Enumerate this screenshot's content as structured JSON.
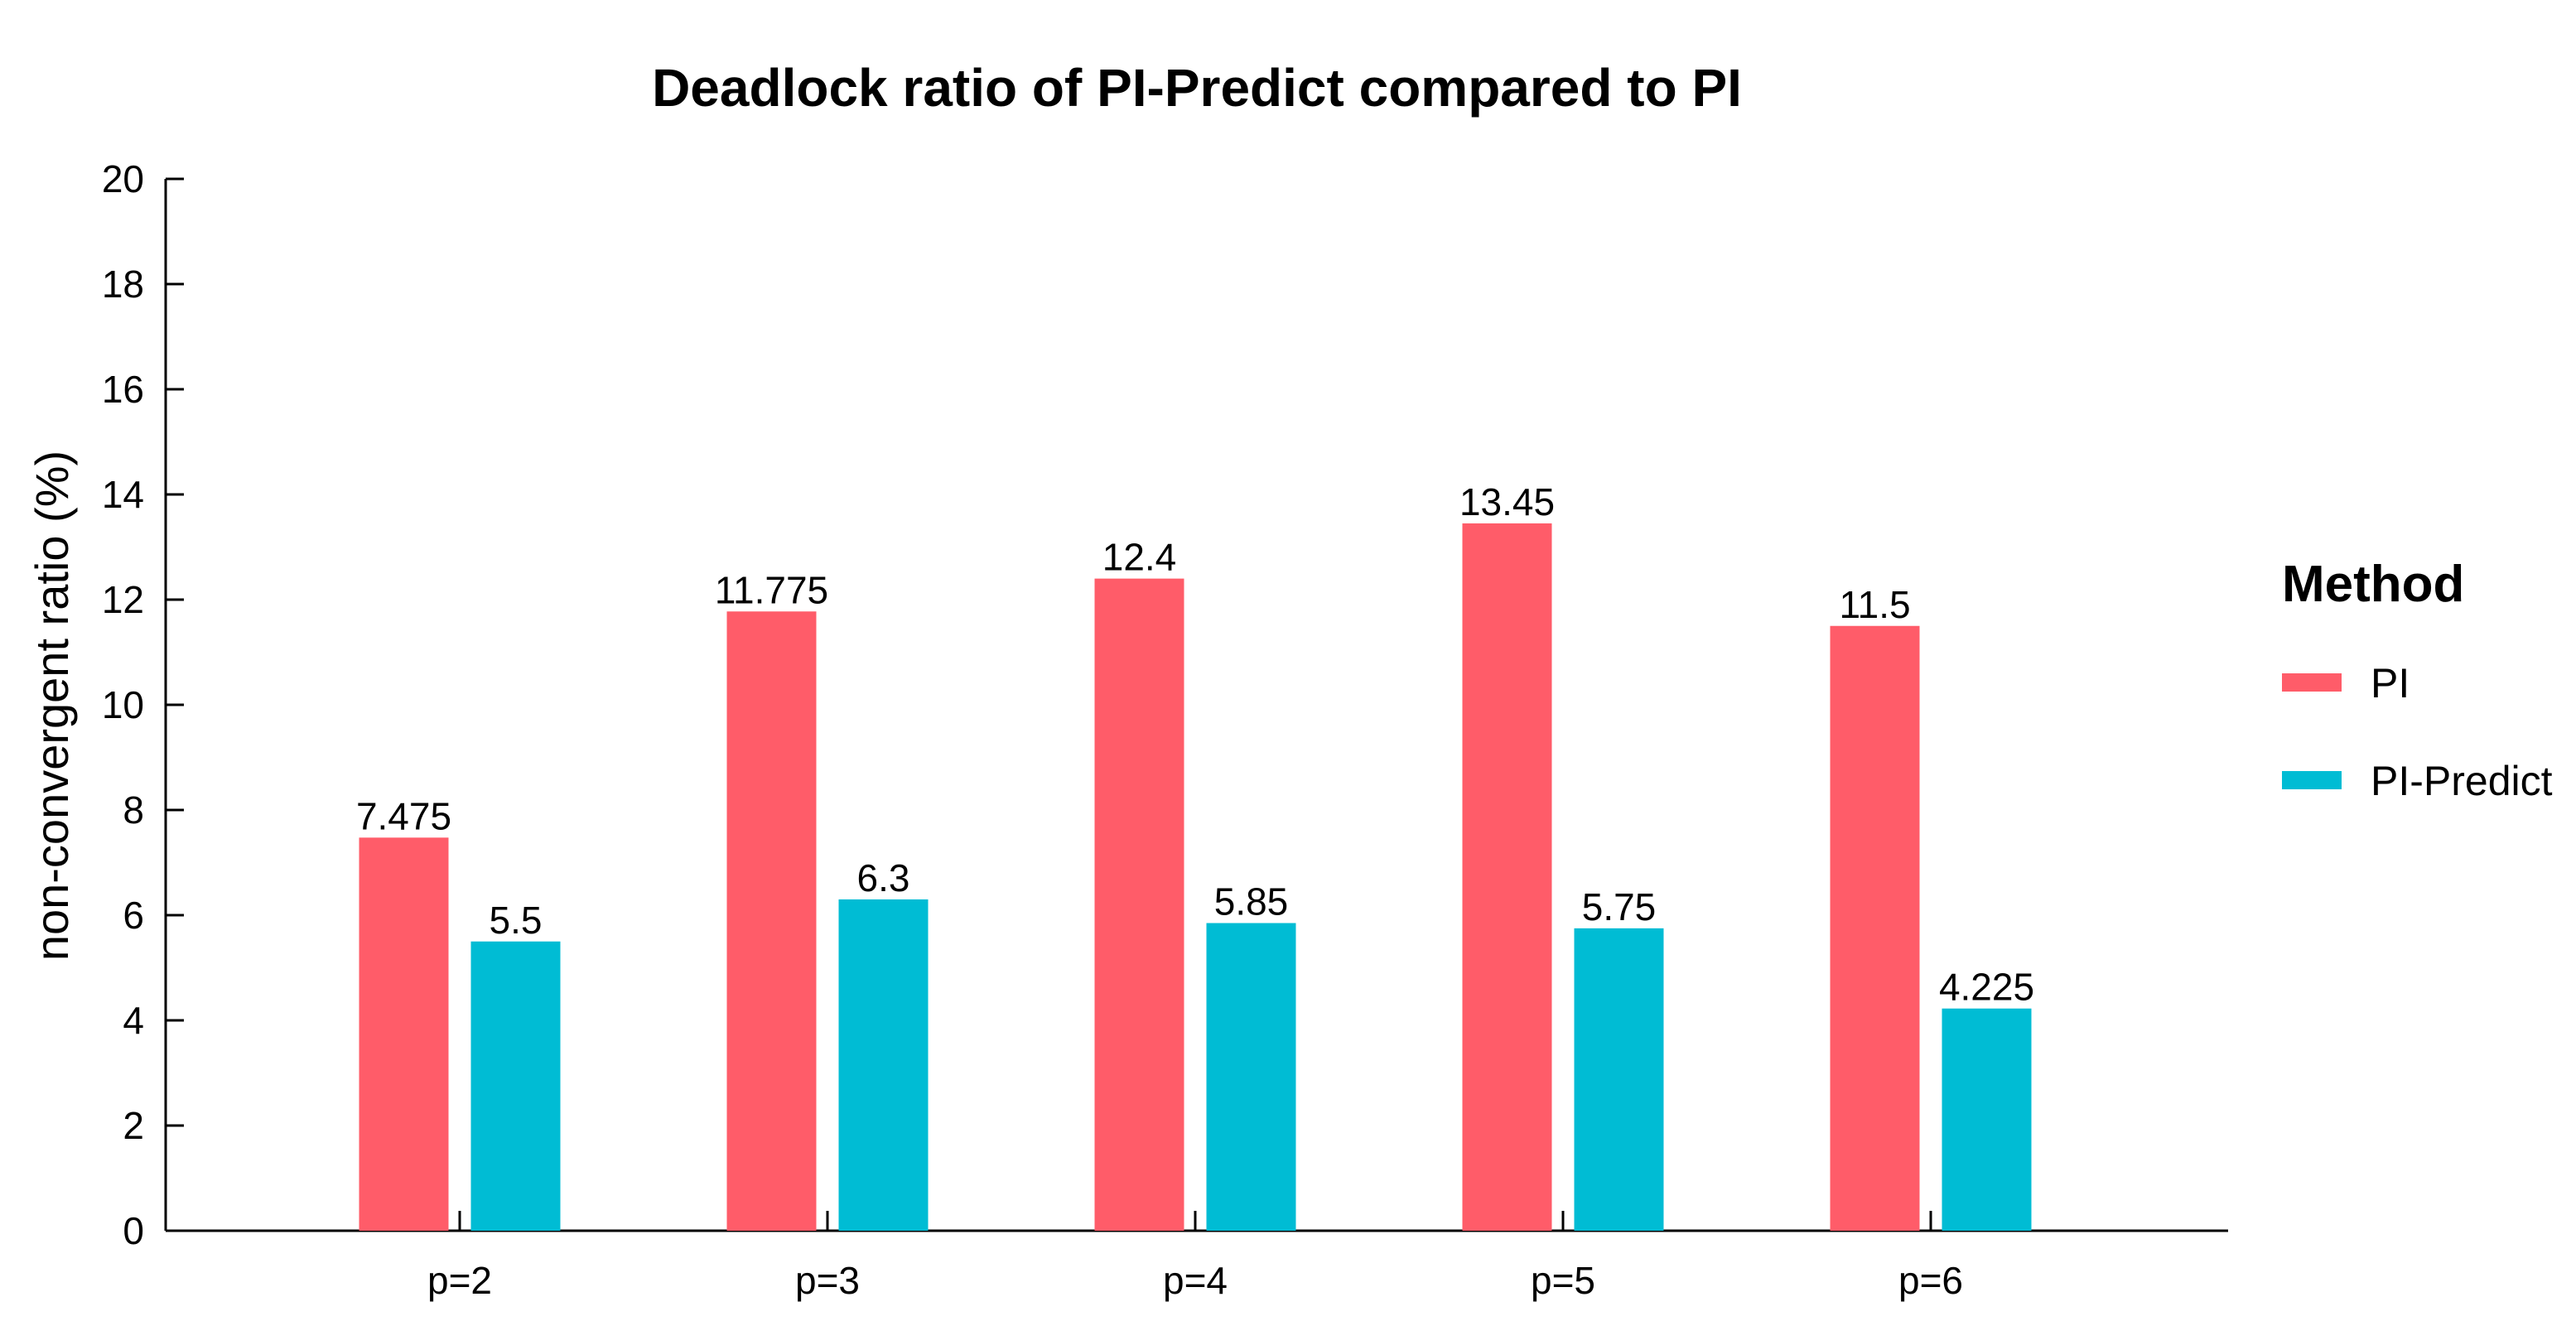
{
  "chart_data": {
    "type": "bar",
    "title": "Deadlock ratio of PI-Predict compared to PI",
    "xlabel": "",
    "ylabel": "non-convergent ratio (%)",
    "ylim": [
      0,
      20
    ],
    "yticks": [
      0,
      2,
      4,
      6,
      8,
      10,
      12,
      14,
      16,
      18,
      20
    ],
    "categories": [
      "p=2",
      "p=3",
      "p=4",
      "p=5",
      "p=6"
    ],
    "series": [
      {
        "name": "PI",
        "color": "#FF5C69",
        "values": [
          7.475,
          11.775,
          12.4,
          13.45,
          11.5
        ],
        "labels": [
          "7.475",
          "11.775",
          "12.4",
          "13.45",
          "11.5"
        ]
      },
      {
        "name": "PI-Predict",
        "color": "#00BCD4",
        "values": [
          5.5,
          6.3,
          5.85,
          5.75,
          4.225
        ],
        "labels": [
          "5.5",
          "6.3",
          "5.85",
          "5.75",
          "4.225"
        ]
      }
    ],
    "legend": {
      "title": "Method",
      "position": "right"
    },
    "grid": false
  }
}
